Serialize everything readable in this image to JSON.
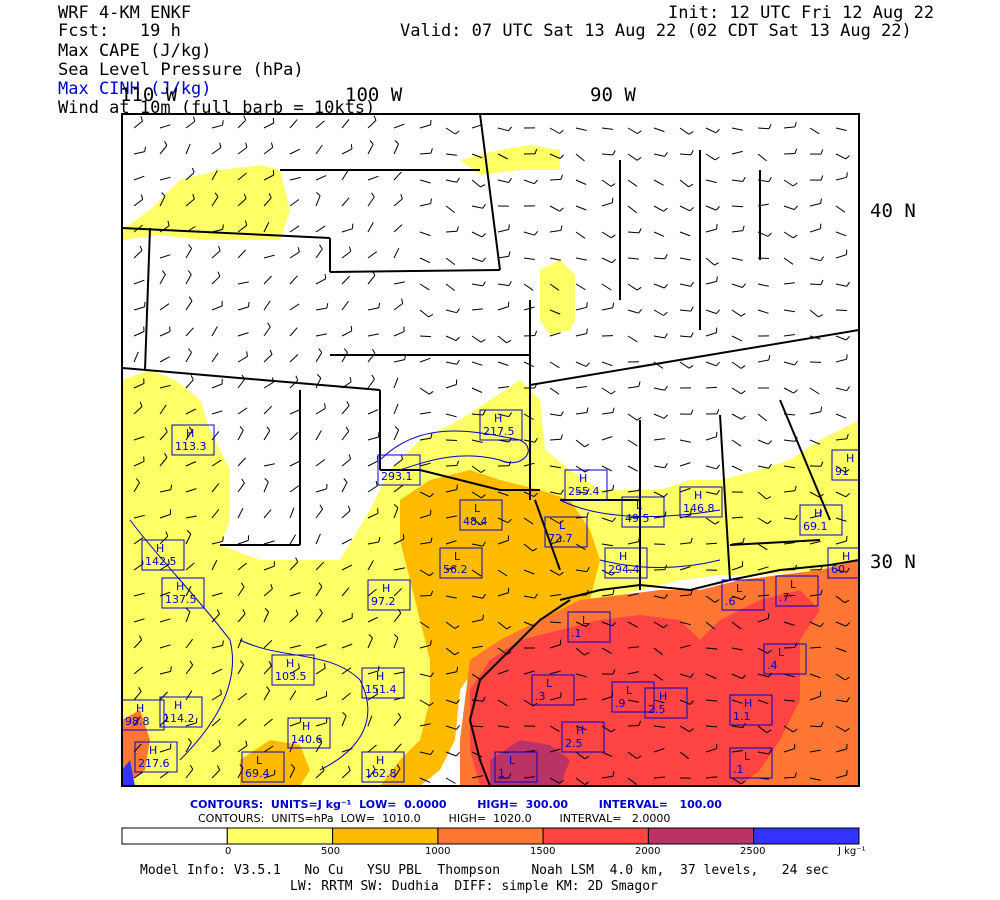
{
  "header": {
    "model": "WRF 4-KM ENKF",
    "fcst": "Fcst:   19 h",
    "init": "Init: 12 UTC Fri 12 Aug 22",
    "valid": "Valid: 07 UTC Sat 13 Aug 22 (02 CDT Sat 13 Aug 22)",
    "fields": [
      "Max CAPE (J/kg)",
      "Sea Level Pressure (hPa)",
      "Max CINH (J/kg)",
      "Wind at 10m (full barb = 10kts)"
    ],
    "field_colors": [
      "#000000",
      "#000000",
      "#0000cc",
      "#000000"
    ]
  },
  "axis_labels": {
    "lon": [
      "110 W",
      "100 W",
      "90 W"
    ],
    "lat": [
      "40 N",
      "30 N"
    ]
  },
  "pressure_centers": [
    {
      "type": "H",
      "value": "217.5"
    },
    {
      "type": "H",
      "value": "113.3"
    },
    {
      "type": "",
      "value": "293.1"
    },
    {
      "type": "H",
      "value": "255.4"
    },
    {
      "type": "L",
      "value": "48.4"
    },
    {
      "type": "L",
      "value": "49.5"
    },
    {
      "type": "H",
      "value": "146.8"
    },
    {
      "type": "H",
      "value": "91"
    },
    {
      "type": "L",
      "value": "72.7"
    },
    {
      "type": "H",
      "value": "69.1"
    },
    {
      "type": "H",
      "value": "142.5"
    },
    {
      "type": "L",
      "value": "56.2"
    },
    {
      "type": "H",
      "value": "294.4"
    },
    {
      "type": "H",
      "value": "60"
    },
    {
      "type": "H",
      "value": "137.5"
    },
    {
      "type": "H",
      "value": "97.2"
    },
    {
      "type": "L",
      "value": ".6"
    },
    {
      "type": "L",
      "value": ".7"
    },
    {
      "type": "L",
      "value": ".1"
    },
    {
      "type": "H",
      "value": "103.5"
    },
    {
      "type": "H",
      "value": "151.4"
    },
    {
      "type": "L",
      "value": ".4"
    },
    {
      "type": "H",
      "value": "114.2"
    },
    {
      "type": "H",
      "value": "140.6"
    },
    {
      "type": "L",
      "value": ".3"
    },
    {
      "type": "L",
      "value": ".9"
    },
    {
      "type": "H",
      "value": "2.5"
    },
    {
      "type": "H",
      "value": "1.1"
    },
    {
      "type": "H",
      "value": "217.6"
    },
    {
      "type": "L",
      "value": "69.4"
    },
    {
      "type": "H",
      "value": "162.8"
    },
    {
      "type": "L",
      "value": "1"
    },
    {
      "type": "H",
      "value": "2.5"
    },
    {
      "type": "L",
      "value": ".1"
    },
    {
      "type": "H",
      "value": "98.8"
    }
  ],
  "contour_info": {
    "line1": "CONTOURS:  UNITS=J kg⁻¹  LOW=  0.0000        HIGH=  300.00        INTERVAL=   100.00",
    "line2": "CONTOURS:  UNITS=hPa  LOW=  1010.0        HIGH=  1020.0        INTERVAL=   2.0000"
  },
  "colorbar": {
    "colors": [
      "#ffffff",
      "#ffff66",
      "#ffbb00",
      "#ff7733",
      "#ff4444",
      "#bb3366",
      "#3333ff"
    ],
    "labels": [
      "0",
      "500",
      "1000",
      "1500",
      "2000",
      "2500"
    ],
    "unit": "J kg⁻¹"
  },
  "footer": {
    "line1": "Model Info: V3.5.1   No Cu   YSU PBL  Thompson    Noah LSM  4.0 km,  37 levels,   24 sec",
    "line2": "LW: RRTM SW: Dudhia  DIFF: simple KM: 2D Smagor"
  }
}
